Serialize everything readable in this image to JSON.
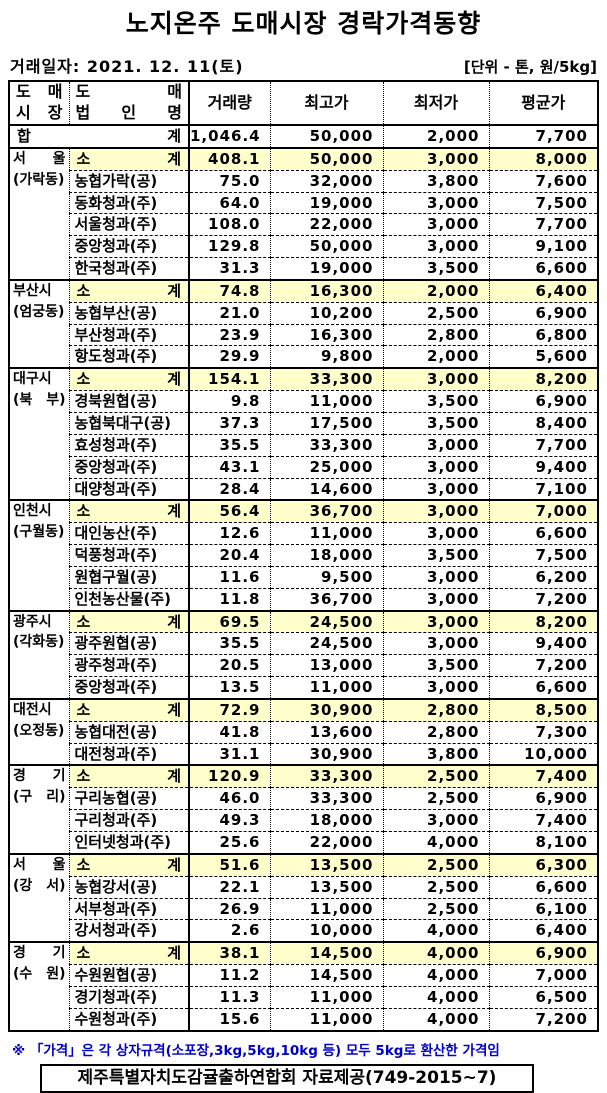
{
  "title": "노지온주 도매시장 경락가격동향",
  "trade_date": "거래일자: 2021. 12. 11(토)",
  "unit": "[단위 - 톤, 원/5kg]",
  "colors": {
    "subtotal_highlight": "#FFFFCC",
    "note_text": "#0000CC",
    "table_border": "#000000"
  },
  "table": {
    "headers": {
      "market_line1": "도 매",
      "market_line2": "시 장",
      "corp_line1": "도 매",
      "corp_line2": "법 인 명",
      "volume": "거래량",
      "high": "최고가",
      "low": "최저가",
      "avg": "평균가"
    },
    "total_row": {
      "label": "합 계",
      "volume": "1,046.4",
      "high": "50,000",
      "low": "2,000",
      "avg": "7,700"
    },
    "subtotal_label": "소 계",
    "sections": [
      {
        "market_line1": "서 울",
        "market_line2": "(가락동)",
        "subtotal": {
          "volume": "408.1",
          "high": "50,000",
          "low": "3,000",
          "avg": "8,000"
        },
        "rows": [
          {
            "name": "농협가락(공)",
            "volume": "75.0",
            "high": "32,000",
            "low": "3,800",
            "avg": "7,600"
          },
          {
            "name": "동화청과(주)",
            "volume": "64.0",
            "high": "19,000",
            "low": "3,000",
            "avg": "7,500"
          },
          {
            "name": "서울청과(주)",
            "volume": "108.0",
            "high": "22,000",
            "low": "3,000",
            "avg": "7,700"
          },
          {
            "name": "중앙청과(주)",
            "volume": "129.8",
            "high": "50,000",
            "low": "3,000",
            "avg": "9,100"
          },
          {
            "name": "한국청과(주)",
            "volume": "31.3",
            "high": "19,000",
            "low": "3,500",
            "avg": "6,600"
          }
        ]
      },
      {
        "market_line1": "부산시",
        "market_line2": "(엄궁동)",
        "subtotal": {
          "volume": "74.8",
          "high": "16,300",
          "low": "2,000",
          "avg": "6,400"
        },
        "rows": [
          {
            "name": "농협부산(공)",
            "volume": "21.0",
            "high": "10,200",
            "low": "2,500",
            "avg": "6,900"
          },
          {
            "name": "부산청과(주)",
            "volume": "23.9",
            "high": "16,300",
            "low": "2,800",
            "avg": "6,800"
          },
          {
            "name": "항도청과(주)",
            "volume": "29.9",
            "high": "9,800",
            "low": "2,000",
            "avg": "5,600"
          }
        ]
      },
      {
        "market_line1": "대구시",
        "market_line2": "(북 부)",
        "subtotal": {
          "volume": "154.1",
          "high": "33,300",
          "low": "3,000",
          "avg": "8,200"
        },
        "rows": [
          {
            "name": "경북원협(공)",
            "volume": "9.8",
            "high": "11,000",
            "low": "3,500",
            "avg": "6,900"
          },
          {
            "name": "농협북대구(공)",
            "volume": "37.3",
            "high": "17,500",
            "low": "3,500",
            "avg": "8,400"
          },
          {
            "name": "효성청과(주)",
            "volume": "35.5",
            "high": "33,300",
            "low": "3,000",
            "avg": "7,700"
          },
          {
            "name": "중앙청과(주)",
            "volume": "43.1",
            "high": "25,000",
            "low": "3,000",
            "avg": "9,400"
          },
          {
            "name": "대양청과(주)",
            "volume": "28.4",
            "high": "14,600",
            "low": "3,000",
            "avg": "7,100"
          }
        ]
      },
      {
        "market_line1": "인천시",
        "market_line2": "(구월동)",
        "subtotal": {
          "volume": "56.4",
          "high": "36,700",
          "low": "3,000",
          "avg": "7,000"
        },
        "rows": [
          {
            "name": "대인농산(주)",
            "volume": "12.6",
            "high": "11,000",
            "low": "3,000",
            "avg": "6,600"
          },
          {
            "name": "덕풍청과(주)",
            "volume": "20.4",
            "high": "18,000",
            "low": "3,500",
            "avg": "7,500"
          },
          {
            "name": "원협구월(공)",
            "volume": "11.6",
            "high": "9,500",
            "low": "3,000",
            "avg": "6,200"
          },
          {
            "name": "인천농산물(주)",
            "volume": "11.8",
            "high": "36,700",
            "low": "3,000",
            "avg": "7,200"
          }
        ]
      },
      {
        "market_line1": "광주시",
        "market_line2": "(각화동)",
        "subtotal": {
          "volume": "69.5",
          "high": "24,500",
          "low": "3,000",
          "avg": "8,200"
        },
        "rows": [
          {
            "name": "광주원협(공)",
            "volume": "35.5",
            "high": "24,500",
            "low": "3,000",
            "avg": "9,400"
          },
          {
            "name": "광주청과(주)",
            "volume": "20.5",
            "high": "13,000",
            "low": "3,500",
            "avg": "7,200"
          },
          {
            "name": "중앙청과(주)",
            "volume": "13.5",
            "high": "11,000",
            "low": "3,000",
            "avg": "6,600"
          }
        ]
      },
      {
        "market_line1": "대전시",
        "market_line2": "(오정동)",
        "subtotal": {
          "volume": "72.9",
          "high": "30,900",
          "low": "2,800",
          "avg": "8,500"
        },
        "rows": [
          {
            "name": "농협대전(공)",
            "volume": "41.8",
            "high": "13,600",
            "low": "2,800",
            "avg": "7,300"
          },
          {
            "name": "대전청과(주)",
            "volume": "31.1",
            "high": "30,900",
            "low": "3,800",
            "avg": "10,000"
          }
        ]
      },
      {
        "market_line1": "경 기",
        "market_line2": "(구 리)",
        "subtotal": {
          "volume": "120.9",
          "high": "33,300",
          "low": "2,500",
          "avg": "7,400"
        },
        "rows": [
          {
            "name": "구리농협(공)",
            "volume": "46.0",
            "high": "33,300",
            "low": "2,500",
            "avg": "6,900"
          },
          {
            "name": "구리청과(주)",
            "volume": "49.3",
            "high": "18,000",
            "low": "3,000",
            "avg": "7,400"
          },
          {
            "name": "인터넷청과(주)",
            "volume": "25.6",
            "high": "22,000",
            "low": "4,000",
            "avg": "8,100"
          }
        ]
      },
      {
        "market_line1": "서 울",
        "market_line2": "(강 서)",
        "subtotal": {
          "volume": "51.6",
          "high": "13,500",
          "low": "2,500",
          "avg": "6,300"
        },
        "rows": [
          {
            "name": "농협강서(공)",
            "volume": "22.1",
            "high": "13,500",
            "low": "2,500",
            "avg": "6,600"
          },
          {
            "name": "서부청과(주)",
            "volume": "26.9",
            "high": "11,000",
            "low": "2,500",
            "avg": "6,100"
          },
          {
            "name": "강서청과(주)",
            "volume": "2.6",
            "high": "10,000",
            "low": "4,000",
            "avg": "6,400"
          }
        ]
      },
      {
        "market_line1": "경 기",
        "market_line2": "(수 원)",
        "subtotal": {
          "volume": "38.1",
          "high": "14,500",
          "low": "4,000",
          "avg": "6,900"
        },
        "rows": [
          {
            "name": "수원원협(공)",
            "volume": "11.2",
            "high": "14,500",
            "low": "4,000",
            "avg": "7,000"
          },
          {
            "name": "경기청과(주)",
            "volume": "11.3",
            "high": "11,000",
            "low": "4,000",
            "avg": "6,500"
          },
          {
            "name": "수원청과(주)",
            "volume": "15.6",
            "high": "11,000",
            "low": "4,000",
            "avg": "7,200"
          }
        ]
      }
    ]
  },
  "footnote": "※ 「가격」은 각 상자규격(소포장,3kg,5kg,10kg 등) 모두 5kg로 환산한 가격임",
  "provider": "제주특별자치도감귤출하연합회 자료제공(749-2015~7)"
}
